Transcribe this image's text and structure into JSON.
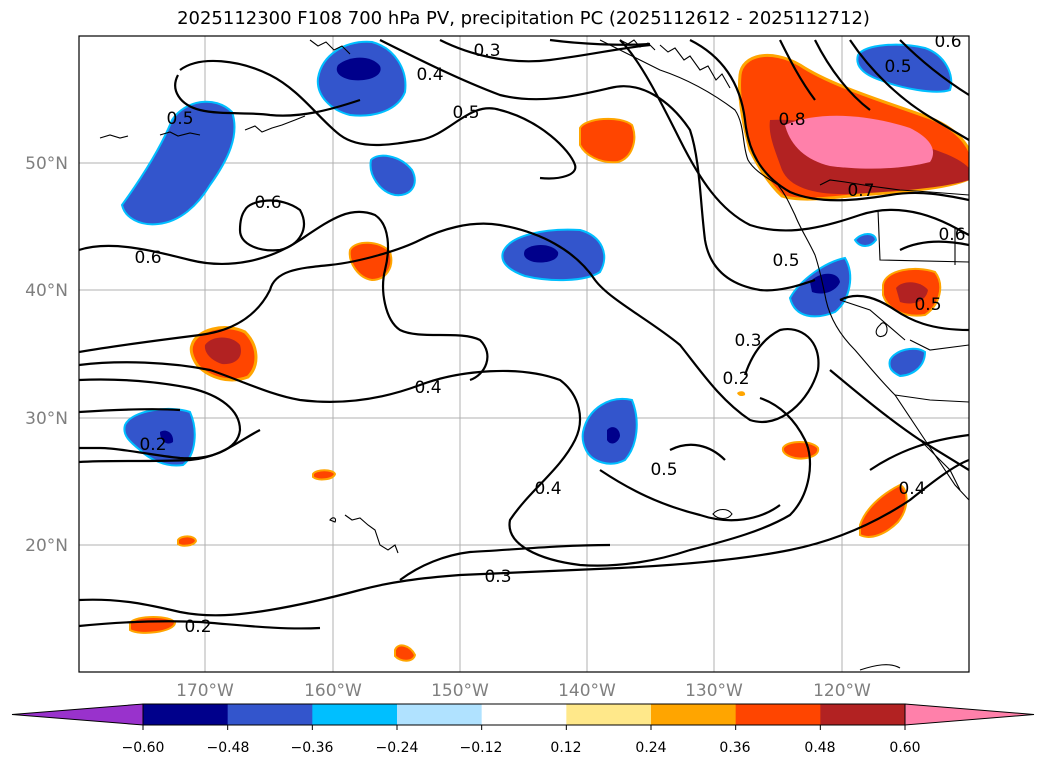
{
  "title": "2025112300 F108 700 hPa PV, precipitation PC (2025112612 - 2025112712)",
  "lat_labels": [
    "50°N",
    "40°N",
    "30°N",
    "20°N"
  ],
  "lon_labels": [
    "170°W",
    "160°W",
    "150°W",
    "140°W",
    "130°W",
    "120°W"
  ],
  "contour_labels": [
    "0.3",
    "0.4",
    "0.5",
    "0.6",
    "0.5",
    "0.6",
    "0.8",
    "0.7",
    "0.5",
    "0.6",
    "0.5",
    "0.3",
    "0.2",
    "0.4",
    "0.4",
    "0.5",
    "0.2",
    "0.3",
    "0.2",
    "0.4",
    "0.6",
    "0.5"
  ],
  "colorbar": {
    "ticks": [
      "−0.60",
      "−0.48",
      "−0.36",
      "−0.24",
      "−0.12",
      "0.12",
      "0.24",
      "0.36",
      "0.48",
      "0.60"
    ],
    "colors": [
      "#9932cc",
      "#00008b",
      "#3355cc",
      "#00bfff",
      "#b0e2ff",
      "#ffffff",
      "#ffe88a",
      "#ffa500",
      "#ff4500",
      "#b22222",
      "#ff80aa"
    ]
  }
}
